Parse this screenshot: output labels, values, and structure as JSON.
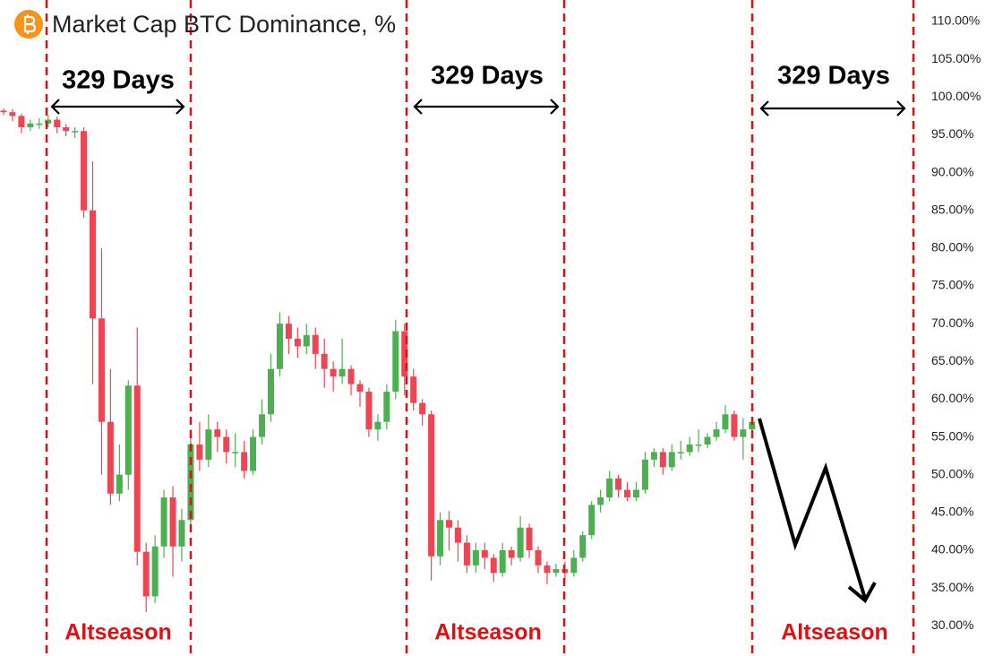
{
  "chart_data": {
    "type": "candlestick",
    "title": "Market Cap BTC Dominance, %",
    "up_color": "#4caf50",
    "down_color": "#ef4452",
    "open": [
      98.2,
      98,
      97.5,
      96,
      96.5,
      96.5,
      97,
      96,
      95.5,
      95.5,
      85,
      70.7,
      57,
      47.5,
      50,
      61.8,
      39.8,
      33.9,
      40.5,
      47,
      40.5,
      44,
      54,
      52,
      56,
      55,
      53,
      53,
      50.5,
      55,
      58,
      64,
      70,
      68,
      67,
      68.5,
      66,
      64,
      63,
      64,
      62,
      61,
      56,
      57,
      61,
      69,
      63,
      59.5,
      58,
      39.2,
      44,
      43,
      41,
      38,
      40,
      39,
      37,
      40,
      39,
      43,
      40,
      38,
      37,
      37.5,
      37,
      39,
      42,
      46,
      47,
      49.5,
      48,
      47,
      48,
      52,
      53,
      51,
      53,
      53,
      54,
      54,
      55,
      56,
      58,
      55,
      56
    ],
    "high": [
      98.5,
      98.4,
      97.8,
      97,
      97.2,
      97.6,
      97.4,
      96.4,
      96,
      96,
      91.5,
      80,
      64,
      54,
      62.5,
      69.5,
      41,
      42,
      48,
      48.5,
      45.5,
      56,
      57,
      58,
      57,
      56,
      55.5,
      54.5,
      56,
      60,
      66,
      71.5,
      71,
      69.5,
      70,
      69.5,
      68,
      65,
      68,
      64.5,
      62.5,
      61.5,
      58,
      62,
      70.5,
      70,
      64,
      60,
      58.5,
      45,
      45.2,
      44,
      42,
      41,
      41,
      39.5,
      41,
      40.5,
      44.5,
      43.5,
      40.5,
      38.5,
      38.2,
      38.5,
      40,
      42.5,
      46.5,
      48,
      50.5,
      50,
      49,
      49,
      53,
      53.5,
      53.5,
      54,
      54.5,
      55,
      56,
      55.5,
      57,
      59.2,
      58.5,
      57.5,
      57.5
    ],
    "low": [
      97.6,
      96.8,
      95.2,
      95.5,
      95.8,
      96,
      95.2,
      94.8,
      94.6,
      84,
      62,
      50,
      46,
      46.5,
      48,
      38,
      31.8,
      33,
      39,
      36.5,
      38.5,
      42.5,
      50.5,
      51,
      53,
      51.5,
      51,
      49.5,
      50,
      54,
      57,
      63,
      66,
      65.5,
      66,
      64,
      61.5,
      61,
      62,
      60.5,
      59,
      55,
      54.5,
      56,
      60,
      60.5,
      58.5,
      56.5,
      36,
      38,
      40,
      38.5,
      37,
      37,
      37.5,
      35.8,
      36.5,
      38,
      38.5,
      39,
      37,
      35.5,
      36.5,
      36.2,
      36.5,
      38.5,
      41.5,
      45,
      46.5,
      47,
      46.5,
      46.5,
      47.5,
      51,
      50,
      50.5,
      52,
      52.5,
      53,
      53.5,
      54.5,
      55.5,
      54.5,
      52,
      55.5
    ],
    "close": [
      98,
      97.5,
      96,
      96.5,
      96.5,
      97,
      96,
      95.5,
      95.5,
      85,
      70.7,
      57,
      47.5,
      50,
      61.8,
      39.8,
      33.9,
      40.5,
      47,
      40.5,
      44,
      54,
      52,
      56,
      55,
      53,
      53,
      50.5,
      55,
      58,
      64,
      70,
      68,
      67,
      68.5,
      66,
      64,
      63,
      64,
      62,
      61,
      56,
      57,
      61,
      69,
      63,
      59.5,
      58,
      39.2,
      44,
      43,
      41,
      38,
      40,
      39,
      37,
      40,
      39,
      43,
      40,
      38,
      37,
      37.5,
      37,
      39,
      42,
      46,
      47,
      49.5,
      48,
      47,
      48,
      52,
      53,
      51,
      53,
      53,
      54,
      54,
      55,
      56,
      58,
      55,
      56,
      57
    ],
    "ylim": [
      26,
      112.85
    ],
    "yticks": [
      {
        "value": 30,
        "label": "30.00%"
      },
      {
        "value": 35,
        "label": "35.00%"
      },
      {
        "value": 40,
        "label": "40.00%"
      },
      {
        "value": 45,
        "label": "45.00%"
      },
      {
        "value": 50,
        "label": "50.00%"
      },
      {
        "value": 55,
        "label": "55.00%"
      },
      {
        "value": 60,
        "label": "60.00%"
      },
      {
        "value": 65,
        "label": "65.00%"
      },
      {
        "value": 70,
        "label": "70.00%"
      },
      {
        "value": 75,
        "label": "75.00%"
      },
      {
        "value": 80,
        "label": "80.00%"
      },
      {
        "value": 85,
        "label": "85.00%"
      },
      {
        "value": 90,
        "label": "90.00%"
      },
      {
        "value": 95,
        "label": "95.00%"
      },
      {
        "value": 100,
        "label": "100.00%"
      },
      {
        "value": 105,
        "label": "105.00%"
      },
      {
        "value": 110,
        "label": "110.00%"
      }
    ],
    "grid": false,
    "annotations": [
      "329 Days",
      "329 Days",
      "329 Days",
      "Altseason",
      "Altseason",
      "Altseason"
    ]
  }
}
